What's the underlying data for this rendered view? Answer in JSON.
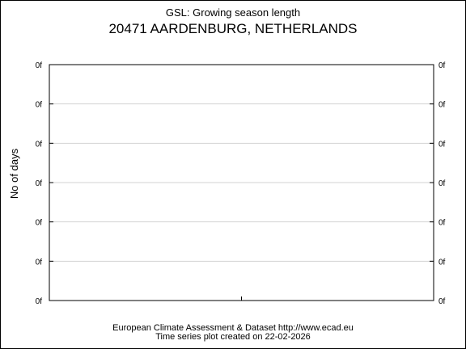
{
  "chart_data": {
    "type": "line",
    "title": "GSL: Growing season length",
    "subtitle": "20471 AARDENBURG, NETHERLANDS",
    "ylabel": "No of days",
    "xlabel": "",
    "y_tick_labels": [
      "0f",
      "0f",
      "0f",
      "0f",
      "0f",
      "0f",
      "0f"
    ],
    "series": [],
    "grid": true
  },
  "footer": {
    "line1": "European Climate Assessment & Dataset  http://www.ecad.eu",
    "line2": "Time series plot created on 22-02-2026"
  }
}
